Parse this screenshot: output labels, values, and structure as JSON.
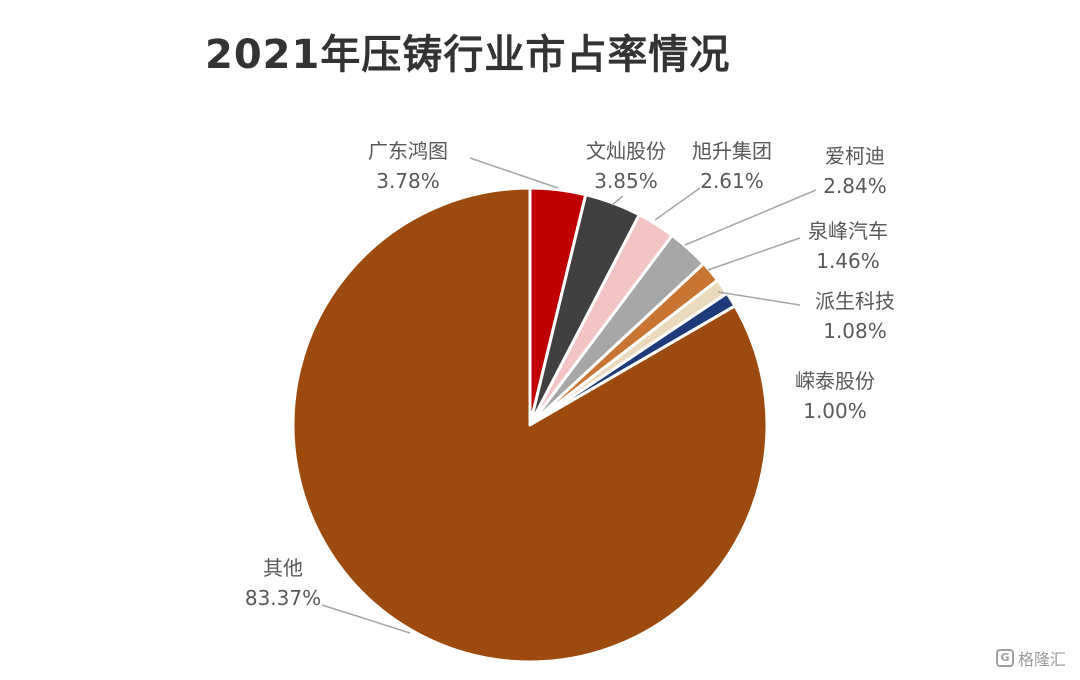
{
  "chart_data": {
    "type": "pie",
    "title": "2021年压铸行业市占率情况",
    "slices": [
      {
        "name": "广东鸿图",
        "value": 3.78,
        "label": "3.78%",
        "color": "#C00000"
      },
      {
        "name": "文灿股份",
        "value": 3.85,
        "label": "3.85%",
        "color": "#404040"
      },
      {
        "name": "旭升集团",
        "value": 2.61,
        "label": "2.61%",
        "color": "#F2C4C4"
      },
      {
        "name": "爱柯迪",
        "value": 2.84,
        "label": "2.84%",
        "color": "#A6A6A6"
      },
      {
        "name": "泉峰汽车",
        "value": 1.46,
        "label": "1.46%",
        "color": "#C87533"
      },
      {
        "name": "派生科技",
        "value": 1.08,
        "label": "1.08%",
        "color": "#EAD9BC"
      },
      {
        "name": "嵘泰股份",
        "value": 1.0,
        "label": "1.00%",
        "color": "#1F3A7A"
      },
      {
        "name": "其他",
        "value": 83.37,
        "label": "83.37%",
        "color": "#9C4A0E"
      }
    ],
    "start_angle": "12 o'clock",
    "direction": "clockwise",
    "legend": "none (data callout labels)"
  },
  "watermark": {
    "text": "格隆汇"
  }
}
